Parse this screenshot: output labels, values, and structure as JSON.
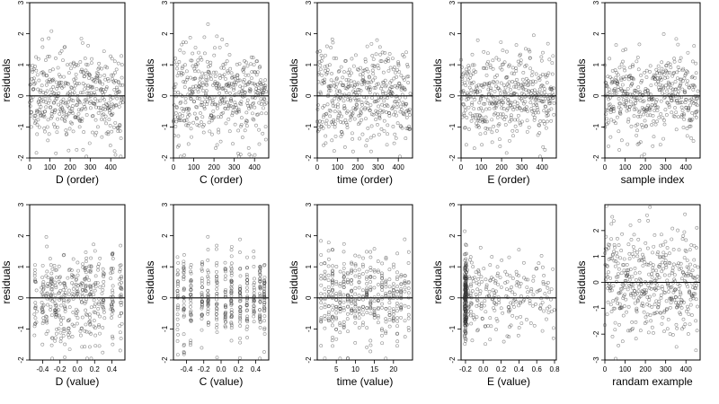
{
  "figure": {
    "background": "#ffffff",
    "point_color": "#333333",
    "line_color": "#000000"
  },
  "chart_data": [
    {
      "type": "scatter",
      "xlabel": "D (order)",
      "ylabel": "residuals",
      "xlim": [
        0,
        470
      ],
      "ylim": [
        -2,
        3
      ],
      "xticks": [
        0,
        100,
        200,
        300,
        400
      ],
      "yticks": [
        -2,
        -1,
        0,
        1,
        2,
        3
      ],
      "hline": 0,
      "points": {
        "kind": "index",
        "n": 440,
        "seed": 11,
        "scale": 0.75,
        "band": 0.08
      }
    },
    {
      "type": "scatter",
      "xlabel": "C (order)",
      "ylabel": "residuals",
      "xlim": [
        0,
        470
      ],
      "ylim": [
        -2,
        3
      ],
      "xticks": [
        0,
        100,
        200,
        300,
        400
      ],
      "yticks": [
        -2,
        -1,
        0,
        1,
        2,
        3
      ],
      "hline": 0,
      "points": {
        "kind": "index",
        "n": 440,
        "seed": 23,
        "scale": 0.75,
        "band": 0
      }
    },
    {
      "type": "scatter",
      "xlabel": "time (order)",
      "ylabel": "residuals",
      "xlim": [
        0,
        470
      ],
      "ylim": [
        -2,
        3
      ],
      "xticks": [
        0,
        100,
        200,
        300,
        400
      ],
      "yticks": [
        -2,
        -1,
        0,
        1,
        2,
        3
      ],
      "hline": 0,
      "points": {
        "kind": "index",
        "n": 440,
        "seed": 37,
        "scale": 0.75,
        "band": 0
      }
    },
    {
      "type": "scatter",
      "xlabel": "E (order)",
      "ylabel": "residuals",
      "xlim": [
        0,
        470
      ],
      "ylim": [
        -2,
        3
      ],
      "xticks": [
        0,
        100,
        200,
        300,
        400
      ],
      "yticks": [
        -2,
        -1,
        0,
        1,
        2,
        3
      ],
      "hline": 0,
      "points": {
        "kind": "index",
        "n": 440,
        "seed": 41,
        "scale": 0.7,
        "band": 0.1
      }
    },
    {
      "type": "scatter",
      "xlabel": "sample index",
      "ylabel": "residuals",
      "xlim": [
        0,
        470
      ],
      "ylim": [
        -2,
        3
      ],
      "xticks": [
        0,
        100,
        200,
        300,
        400
      ],
      "yticks": [
        -2,
        -1,
        0,
        1,
        2,
        3
      ],
      "hline": 0,
      "points": {
        "kind": "index",
        "n": 440,
        "seed": 53,
        "scale": 0.7,
        "band": 0.12
      }
    },
    {
      "type": "scatter",
      "xlabel": "D (value)",
      "ylabel": "residuals",
      "xlim": [
        -0.55,
        0.55
      ],
      "ylim": [
        -2,
        3
      ],
      "xticks": [
        -0.4,
        -0.2,
        0.0,
        0.2,
        0.4
      ],
      "tick_labels": [
        "-0.4",
        "-0.2",
        "0.0",
        "0.2",
        "0.4"
      ],
      "yticks": [
        -2,
        -1,
        0,
        1,
        2,
        3
      ],
      "hline": 0,
      "points": {
        "kind": "value",
        "n": 420,
        "seed": 61,
        "scale": 0.75,
        "xs": [
          -0.48,
          -0.4,
          -0.35,
          -0.3,
          -0.25,
          -0.2,
          -0.15,
          -0.1,
          -0.05,
          0,
          0.05,
          0.1,
          0.15,
          0.2,
          0.25,
          0.3,
          0.4,
          0.5
        ],
        "jitter": 0.015
      }
    },
    {
      "type": "scatter",
      "xlabel": "C (value)",
      "ylabel": "residuals",
      "xlim": [
        -0.55,
        0.55
      ],
      "ylim": [
        -2,
        3
      ],
      "xticks": [
        -0.4,
        -0.2,
        0.0,
        0.2,
        0.4
      ],
      "tick_labels": [
        "-0.4",
        "-0.2",
        "0.0",
        "0.2",
        "0.4"
      ],
      "yticks": [
        -2,
        -1,
        0,
        1,
        2,
        3
      ],
      "hline": 0,
      "points": {
        "kind": "value",
        "n": 420,
        "seed": 71,
        "scale": 0.72,
        "xs": [
          -0.5,
          -0.43,
          -0.35,
          -0.22,
          -0.15,
          -0.05,
          0.05,
          0.12,
          0.22,
          0.3,
          0.38,
          0.45,
          0.5
        ],
        "jitter": 0.004
      }
    },
    {
      "type": "scatter",
      "xlabel": "time (value)",
      "ylabel": "residuals",
      "xlim": [
        0,
        25
      ],
      "ylim": [
        -2,
        3
      ],
      "xticks": [
        5,
        10,
        15,
        20
      ],
      "yticks": [
        -2,
        -1,
        0,
        1,
        2,
        3
      ],
      "hline": 0,
      "points": {
        "kind": "value",
        "n": 420,
        "seed": 83,
        "scale": 0.75,
        "xs": [
          1,
          2,
          3,
          4,
          5,
          6,
          7,
          8,
          9,
          10,
          11,
          12,
          13,
          14,
          15,
          16,
          17,
          18,
          19,
          20,
          21,
          22,
          23,
          24
        ],
        "jitter": 0.05
      }
    },
    {
      "type": "scatter",
      "xlabel": "E (value)",
      "ylabel": "residuals",
      "xlim": [
        -0.25,
        0.82
      ],
      "ylim": [
        -2,
        3
      ],
      "xticks": [
        -0.2,
        0.0,
        0.2,
        0.4,
        0.6,
        0.8
      ],
      "tick_labels": [
        "-0.2",
        "0.0",
        "0.2",
        "0.4",
        "0.6",
        "0.8"
      ],
      "yticks": [
        -2,
        -1,
        0,
        1,
        2,
        3
      ],
      "hline": 0,
      "points": {
        "kind": "skew",
        "n": 420,
        "seed": 97,
        "scale": 0.7,
        "cluster_x": -0.2,
        "cluster_frac": 0.5
      }
    },
    {
      "type": "scatter",
      "xlabel": "randam example",
      "ylabel": "residuals",
      "xlim": [
        0,
        470
      ],
      "ylim": [
        -3,
        3
      ],
      "xticks": [
        0,
        100,
        200,
        300,
        400
      ],
      "yticks": [
        -3,
        -2,
        -1,
        0,
        1,
        2
      ],
      "hline": 0,
      "points": {
        "kind": "index",
        "n": 440,
        "seed": 113,
        "scale": 1.05,
        "band": 0
      }
    }
  ]
}
